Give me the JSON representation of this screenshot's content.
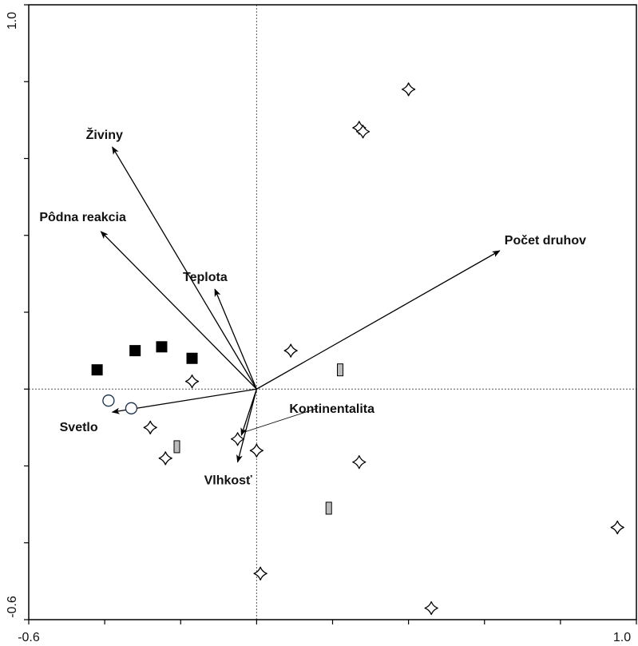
{
  "chart_data": {
    "type": "scatter",
    "title": "",
    "xlabel": "",
    "ylabel": "",
    "xlim": [
      -0.6,
      1.0
    ],
    "ylim": [
      -0.6,
      1.0
    ],
    "x_tick_labels": [
      "-0.6",
      "1.0"
    ],
    "y_tick_labels": [
      "-0.6",
      "1.0"
    ],
    "minor_tick_step": 0.2,
    "zero_lines": true,
    "grid": false,
    "legend": "none",
    "colors": {
      "axis": "#000000",
      "vector": "#000000",
      "zero_line": "#555555",
      "filled_square": "#000000",
      "gray_bar": "#bbbbbb",
      "open_circle": "#1a2f4a",
      "star": "#000000"
    },
    "vectors": [
      {
        "label": "Živiny",
        "x": -0.38,
        "y": 0.63
      },
      {
        "label": "Pôdna reakcia",
        "x": -0.41,
        "y": 0.41
      },
      {
        "label": "Teplota",
        "x": -0.11,
        "y": 0.26
      },
      {
        "label": "Počet druhov",
        "x": 0.64,
        "y": 0.36
      },
      {
        "label": "Svetlo",
        "x": -0.38,
        "y": -0.06
      },
      {
        "label": "Vlhkosť",
        "x": -0.05,
        "y": -0.19
      },
      {
        "label": "Kontinentalita",
        "x": -0.04,
        "y": -0.12
      }
    ],
    "series": [
      {
        "marker": "filled-square",
        "points": [
          {
            "x": -0.42,
            "y": 0.05
          },
          {
            "x": -0.32,
            "y": 0.1
          },
          {
            "x": -0.25,
            "y": 0.11
          },
          {
            "x": -0.17,
            "y": 0.08
          }
        ]
      },
      {
        "marker": "gray-bar",
        "points": [
          {
            "x": 0.22,
            "y": 0.05
          },
          {
            "x": -0.21,
            "y": -0.15
          },
          {
            "x": 0.19,
            "y": -0.31
          }
        ]
      },
      {
        "marker": "open-circle",
        "points": [
          {
            "x": -0.39,
            "y": -0.03
          },
          {
            "x": -0.33,
            "y": -0.05
          }
        ]
      },
      {
        "marker": "star",
        "points": [
          {
            "x": 0.4,
            "y": 0.78
          },
          {
            "x": 0.27,
            "y": 0.68
          },
          {
            "x": 0.28,
            "y": 0.67
          },
          {
            "x": 0.09,
            "y": 0.1
          },
          {
            "x": -0.17,
            "y": 0.02
          },
          {
            "x": -0.28,
            "y": -0.1
          },
          {
            "x": -0.24,
            "y": -0.18
          },
          {
            "x": -0.05,
            "y": -0.13
          },
          {
            "x": 0.0,
            "y": -0.16
          },
          {
            "x": 0.27,
            "y": -0.19
          },
          {
            "x": 0.01,
            "y": -0.48
          },
          {
            "x": 0.46,
            "y": -0.57
          },
          {
            "x": 0.95,
            "y": -0.36
          }
        ]
      }
    ]
  }
}
